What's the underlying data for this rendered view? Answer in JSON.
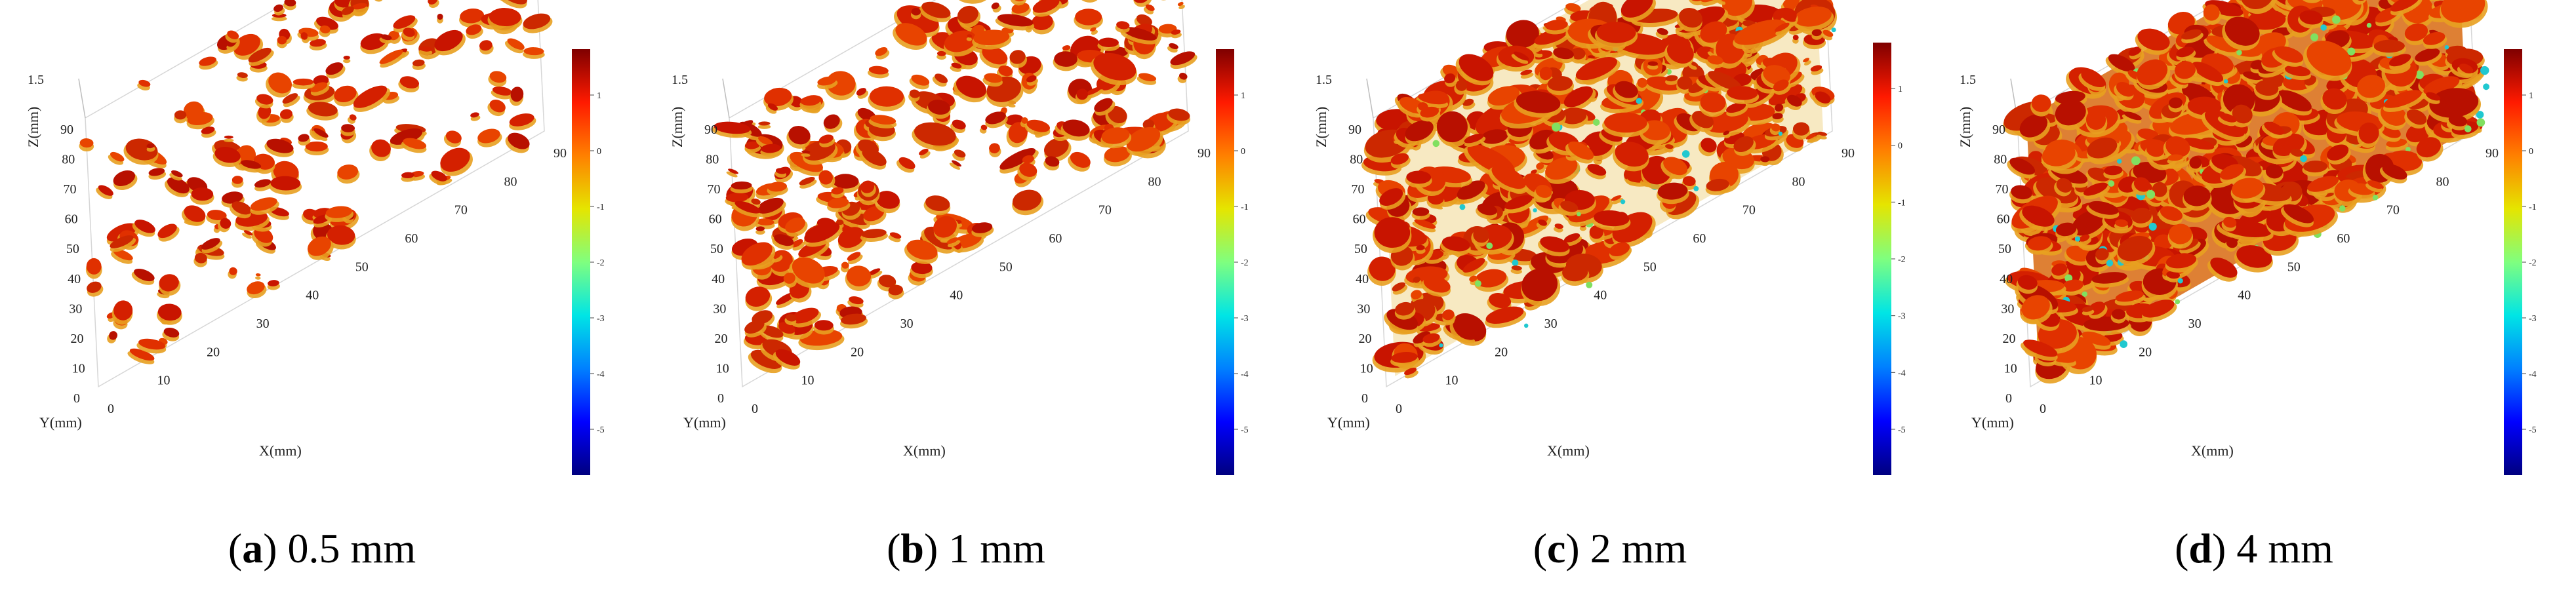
{
  "figure": {
    "panels": [
      {
        "letter": "a",
        "caption": "0.5 mm",
        "density": 0.28,
        "seed": 11,
        "colorbar_ticks": [
          "1",
          "0",
          "-1",
          "-2",
          "-3",
          "-4",
          "-5"
        ]
      },
      {
        "letter": "b",
        "caption": "1 mm",
        "density": 0.48,
        "seed": 23,
        "colorbar_ticks": [
          "1",
          "0",
          "-1",
          "-2",
          "-3",
          "-4",
          "-5"
        ]
      },
      {
        "letter": "c",
        "caption": "2 mm",
        "density": 0.78,
        "seed": 37,
        "colorbar_ticks": [
          "1",
          "0",
          "-1",
          "-2",
          "-3",
          "-4",
          "-5"
        ]
      },
      {
        "letter": "d",
        "caption": "4 mm",
        "density": 0.97,
        "seed": 53,
        "colorbar_ticks": [
          "1",
          "0",
          "-1",
          "-2",
          "-3",
          "-4",
          "-5"
        ]
      }
    ],
    "axes": {
      "x_label": "X(mm)",
      "y_label": "Y(mm)",
      "z_label": "Z(mm)",
      "x_ticks": [
        "0",
        "10",
        "20",
        "30",
        "40",
        "50",
        "60",
        "70",
        "80",
        "90"
      ],
      "y_ticks": [
        "0",
        "10",
        "20",
        "30",
        "40",
        "50",
        "60",
        "70",
        "80",
        "90"
      ],
      "z_top_tick": "1.5"
    },
    "colormap": [
      "#00007f",
      "#0000ff",
      "#0080ff",
      "#00e5e5",
      "#7fff7f",
      "#e5e500",
      "#ff8000",
      "#ff1a00",
      "#7f0000"
    ]
  }
}
